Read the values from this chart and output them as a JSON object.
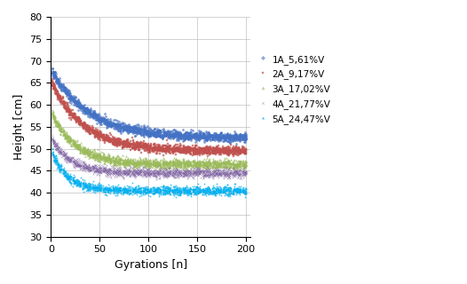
{
  "series": [
    {
      "label": "1A_5,61%V",
      "color": "#4472C4",
      "marker": "D",
      "markersize": 1.5,
      "start": 67.5,
      "end": 52.5,
      "decay": 0.025,
      "n_runs": 8,
      "noise_scale": 0.5
    },
    {
      "label": "2A_9,17%V",
      "color": "#C0504D",
      "marker": "s",
      "markersize": 1.5,
      "start": 65.0,
      "end": 49.5,
      "decay": 0.03,
      "n_runs": 8,
      "noise_scale": 0.5
    },
    {
      "label": "3A_17,02%V",
      "color": "#9BBB59",
      "marker": "^",
      "markersize": 1.5,
      "start": 58.0,
      "end": 46.5,
      "decay": 0.04,
      "n_runs": 8,
      "noise_scale": 0.5
    },
    {
      "label": "4A_21,77%V",
      "color": "#8064A2",
      "marker": "x",
      "markersize": 1.5,
      "start": 52.0,
      "end": 44.5,
      "decay": 0.05,
      "n_runs": 8,
      "noise_scale": 0.5
    },
    {
      "label": "5A_24,47%V",
      "color": "#00B0F0",
      "marker": "*",
      "markersize": 1.5,
      "start": 49.0,
      "end": 40.5,
      "decay": 0.06,
      "n_runs": 8,
      "noise_scale": 0.5
    }
  ],
  "xlabel": "Gyrations [n]",
  "ylabel": "Height [cm]",
  "xlim": [
    0,
    205
  ],
  "ylim": [
    30,
    80
  ],
  "yticks": [
    30,
    35,
    40,
    45,
    50,
    55,
    60,
    65,
    70,
    75,
    80
  ],
  "xticks": [
    0,
    50,
    100,
    150,
    200
  ],
  "n_points": 200,
  "background_color": "#FFFFFF",
  "grid_color": "#C0C0C0",
  "legend_fontsize": 7.5,
  "axis_fontsize": 9,
  "tick_fontsize": 8
}
